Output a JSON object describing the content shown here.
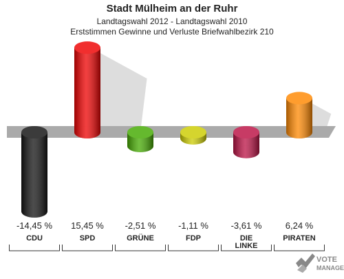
{
  "header": {
    "title": "Stadt Mülheim an der Ruhr",
    "subtitle_1": "Landtagswahl 2012 - Landtagswahl 2010",
    "subtitle_2": "Erststimmen Gewinne und Verluste Briefwahlbezirk 210"
  },
  "chart_data": {
    "type": "bar",
    "title": "Stadt Mülheim an der Ruhr",
    "subtitle": "Landtagswahl 2012 - Landtagswahl 2010 / Erststimmen Gewinne und Verluste Briefwahlbezirk 210",
    "categories": [
      "CDU",
      "SPD",
      "GRÜNE",
      "FDP",
      "DIE LINKE",
      "PIRATEN"
    ],
    "category_lines": [
      [
        "CDU"
      ],
      [
        "SPD"
      ],
      [
        "GRÜNE"
      ],
      [
        "FDP"
      ],
      [
        "DIE",
        "LINKE"
      ],
      [
        "PIRATEN"
      ]
    ],
    "values": [
      -14.45,
      15.45,
      -2.51,
      -1.11,
      -3.61,
      6.24
    ],
    "value_labels": [
      "-14,45 %",
      "15,45 %",
      "-2,51 %",
      "-1,11 %",
      "-3,61 %",
      "6,24 %"
    ],
    "colors": [
      "#111111",
      "#ee0000",
      "#44aa00",
      "#cccc00",
      "#bb1144",
      "#ff8800"
    ],
    "ylim": [
      -18,
      18
    ],
    "grid": false
  },
  "watermark": {
    "line_1": "VOTE",
    "line_2": "MANAGER"
  }
}
